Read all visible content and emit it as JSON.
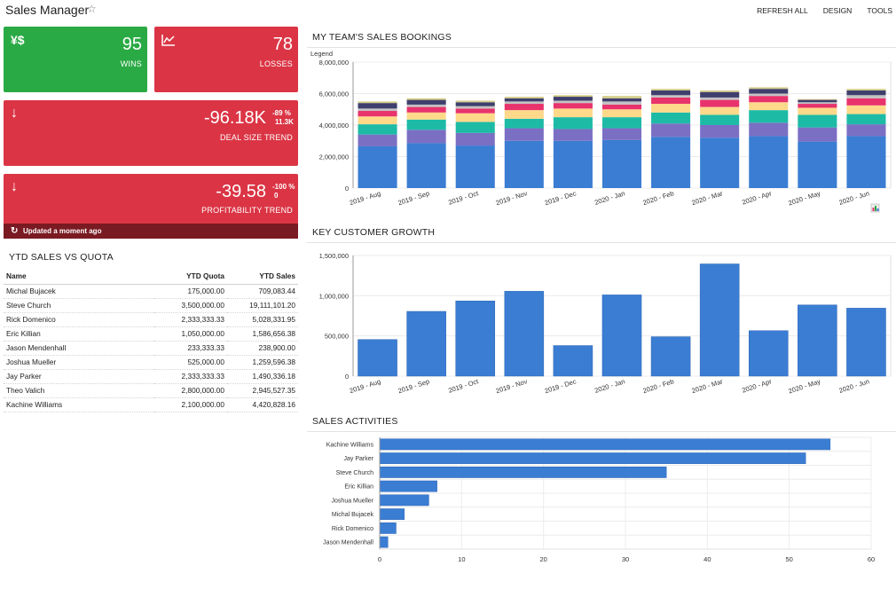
{
  "app": {
    "title": "Sales Manager"
  },
  "top_actions": {
    "refresh_all": "REFRESH ALL",
    "design": "DESIGN",
    "tools": "TOOLS"
  },
  "colors": {
    "green": "#2aaa44",
    "red": "#db3545",
    "dark_red": "#7a1a22",
    "bar_blue": "#3a7dd3"
  },
  "kpis": {
    "wins": {
      "value": "95",
      "label": "WINS",
      "icon": "currency-icon"
    },
    "losses": {
      "value": "78",
      "label": "LOSSES",
      "icon": "line-chart-icon"
    },
    "deal_size": {
      "value": "-96.18K",
      "sub1": "-89 %",
      "sub2": "11.3K",
      "label": "DEAL SIZE TREND",
      "icon": "arrow-down-icon"
    },
    "profitability": {
      "value": "-39.58",
      "sub1": "-100 %",
      "sub2": "0",
      "label": "PROFITABILITY TREND",
      "icon": "arrow-down-icon"
    },
    "updated": "Updated a moment ago"
  },
  "ytd": {
    "title": "YTD SALES VS QUOTA",
    "headers": {
      "name": "Name",
      "quota": "YTD Quota",
      "sales": "YTD Sales"
    },
    "rows": [
      {
        "name": "Michal Bujacek",
        "quota": "175,000.00",
        "sales": "709,083.44"
      },
      {
        "name": "Steve Church",
        "quota": "3,500,000.00",
        "sales": "19,111,101.20"
      },
      {
        "name": "Rick Domenico",
        "quota": "2,333,333.33",
        "sales": "5,028,331.95"
      },
      {
        "name": "Eric Killian",
        "quota": "1,050,000.00",
        "sales": "1,586,656.38"
      },
      {
        "name": "Jason Mendenhall",
        "quota": "233,333.33",
        "sales": "238,900.00"
      },
      {
        "name": "Joshua Mueller",
        "quota": "525,000.00",
        "sales": "1,259,596.38"
      },
      {
        "name": "Jay Parker",
        "quota": "2,333,333.33",
        "sales": "1,490,336.18"
      },
      {
        "name": "Theo Valich",
        "quota": "2,800,000.00",
        "sales": "2,945,527.35"
      },
      {
        "name": "Kachine Williams",
        "quota": "2,100,000.00",
        "sales": "4,420,828.16"
      }
    ]
  },
  "chart_data": [
    {
      "id": "bookings",
      "type": "bar",
      "stacked": true,
      "title": "MY TEAM'S SALES BOOKINGS",
      "legend_label": "Legend",
      "categories": [
        "2019 - Aug",
        "2019 - Sep",
        "2019 - Oct",
        "2019 - Nov",
        "2019 - Dec",
        "2020 - Jan",
        "2020 - Feb",
        "2020 - Mar",
        "2020 - Apr",
        "2020 - May",
        "2020 - Jun"
      ],
      "yticks": [
        "0",
        "2,000,000",
        "4,000,000",
        "6,000,000",
        "8,000,000"
      ],
      "ylim": [
        0,
        8000000
      ],
      "series_colors": [
        "#3a7dd3",
        "#7b6fc4",
        "#1dbba6",
        "#ffd98a",
        "#e8336d",
        "#c3c3c3",
        "#3f3f6e",
        "#d4cc88"
      ],
      "series": [
        {
          "values": [
            2650000,
            2850000,
            2700000,
            3000000,
            3000000,
            3050000,
            3250000,
            3200000,
            3300000,
            2950000,
            3300000
          ]
        },
        {
          "values": [
            750000,
            850000,
            800000,
            800000,
            750000,
            750000,
            850000,
            800000,
            850000,
            900000,
            750000
          ]
        },
        {
          "values": [
            650000,
            650000,
            700000,
            600000,
            750000,
            700000,
            700000,
            650000,
            800000,
            800000,
            650000
          ]
        },
        {
          "values": [
            500000,
            450000,
            550000,
            550000,
            550000,
            500000,
            550000,
            500000,
            500000,
            450000,
            550000
          ]
        },
        {
          "values": [
            350000,
            350000,
            300000,
            400000,
            350000,
            300000,
            400000,
            450000,
            400000,
            250000,
            450000
          ]
        },
        {
          "values": [
            150000,
            150000,
            150000,
            150000,
            150000,
            200000,
            150000,
            150000,
            150000,
            100000,
            200000
          ]
        },
        {
          "values": [
            350000,
            300000,
            250000,
            200000,
            250000,
            200000,
            300000,
            350000,
            300000,
            150000,
            300000
          ]
        },
        {
          "values": [
            100000,
            100000,
            100000,
            100000,
            100000,
            150000,
            100000,
            100000,
            100000,
            50000,
            100000
          ]
        }
      ]
    },
    {
      "id": "growth",
      "type": "bar",
      "title": "KEY CUSTOMER GROWTH",
      "categories": [
        "2019 - Aug",
        "2019 - Sep",
        "2019 - Oct",
        "2019 - Nov",
        "2019 - Dec",
        "2020 - Jan",
        "2020 - Feb",
        "2020 - Mar",
        "2020 - Apr",
        "2020 - May",
        "2020 - Jun"
      ],
      "values": [
        455000,
        805000,
        935000,
        1055000,
        380000,
        1010000,
        490000,
        1395000,
        565000,
        885000,
        845000
      ],
      "yticks": [
        "0",
        "500,000",
        "1,000,000",
        "1,500,000"
      ],
      "ylim": [
        0,
        1500000
      ]
    },
    {
      "id": "activities",
      "type": "bar",
      "orientation": "horizontal",
      "title": "SALES ACTIVITIES",
      "categories": [
        "Kachine Williams",
        "Jay Parker",
        "Steve Church",
        "Eric Killian",
        "Joshua Mueller",
        "Michal Bujacek",
        "Rick Domenico",
        "Jason Mendenhall"
      ],
      "values": [
        55,
        52,
        35,
        7,
        6,
        3,
        2,
        1
      ],
      "xticks": [
        "0",
        "10",
        "20",
        "30",
        "40",
        "50",
        "60"
      ],
      "xlim": [
        0,
        60
      ]
    }
  ]
}
